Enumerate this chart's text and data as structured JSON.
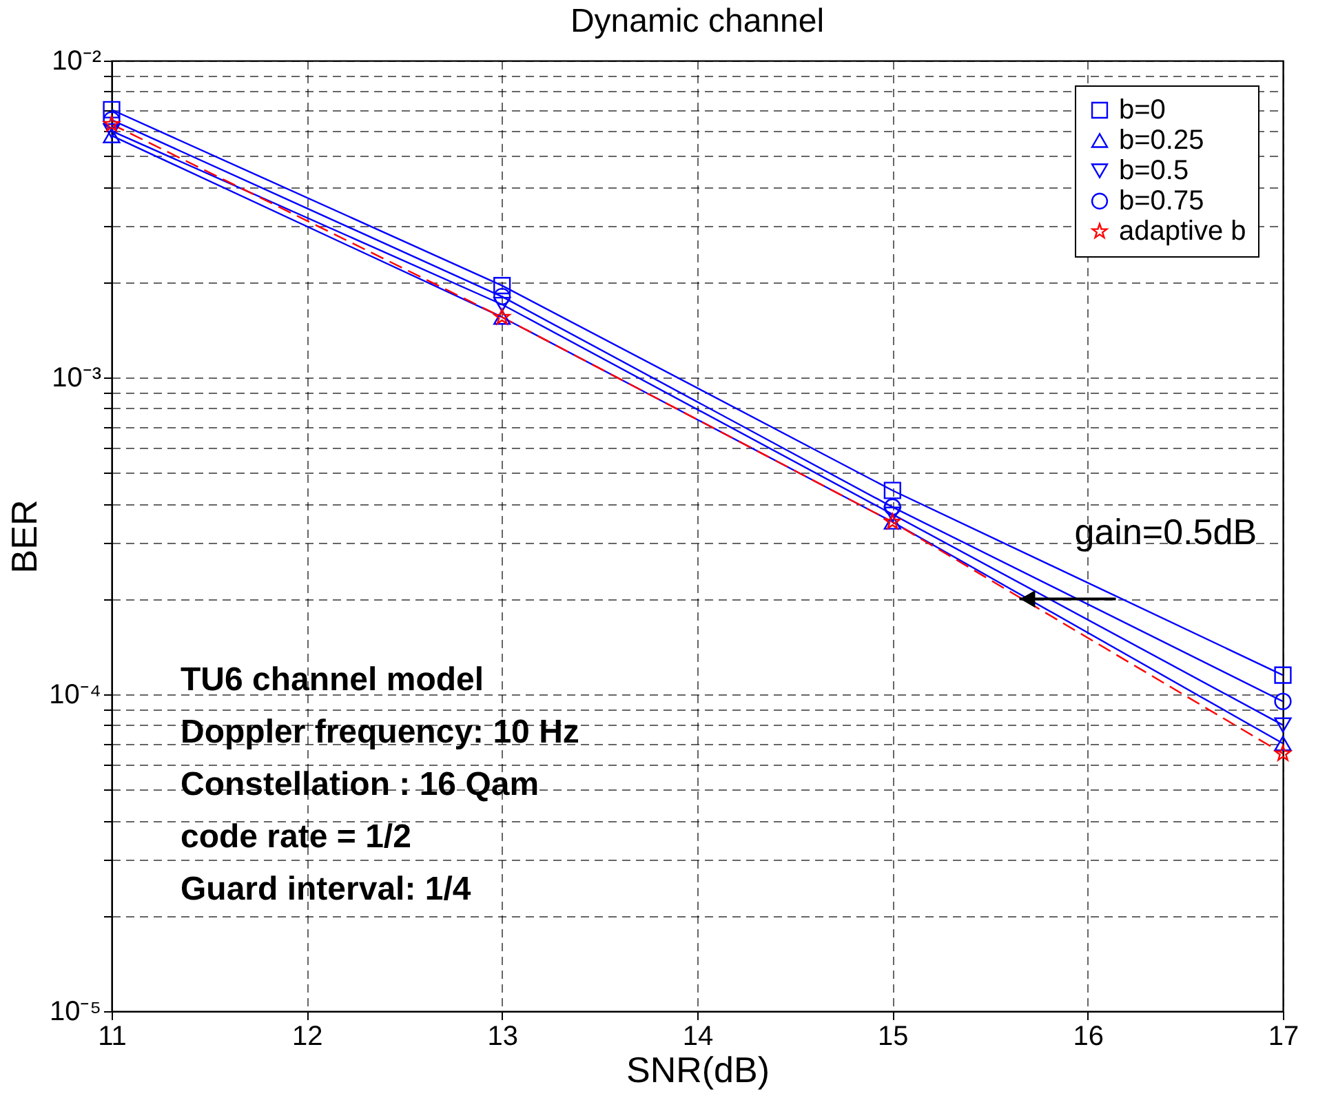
{
  "chart_data": {
    "type": "line",
    "title": "Dynamic channel",
    "xlabel": "SNR(dB)",
    "ylabel": "BER",
    "x": [
      11,
      13,
      15,
      17
    ],
    "series": [
      {
        "name": "b=0",
        "color": "#0000ff",
        "marker": "square",
        "line_style": "solid",
        "values": [
          0.007,
          0.00195,
          0.00044,
          0.000115
        ]
      },
      {
        "name": "b=0.25",
        "color": "#0000ff",
        "marker": "triangle",
        "line_style": "solid",
        "values": [
          0.0058,
          0.00155,
          0.00035,
          7e-05
        ]
      },
      {
        "name": "b=0.5",
        "color": "#0000ff",
        "marker": "triangle-down",
        "line_style": "solid",
        "values": [
          0.006,
          0.0017,
          0.00037,
          8e-05
        ]
      },
      {
        "name": "b=0.75",
        "color": "#0000ff",
        "marker": "circle",
        "line_style": "solid",
        "values": [
          0.0065,
          0.0018,
          0.00039,
          9.5e-05
        ]
      },
      {
        "name": "adaptive b",
        "color": "#ff0000",
        "marker": "star",
        "line_style": "dashed",
        "values": [
          0.0063,
          0.00155,
          0.00035,
          6.5e-05
        ]
      }
    ],
    "log": "y",
    "grid": true,
    "legend": "top right",
    "xlim": [
      11,
      17
    ],
    "xticks": [
      11,
      12,
      13,
      14,
      15,
      16,
      17
    ],
    "ylim": [
      1e-05,
      0.01
    ],
    "yticks": [
      {
        "value": 1e-05,
        "label": "10⁻⁵"
      },
      {
        "value": 2e-05,
        "label": null
      },
      {
        "value": 3e-05,
        "label": null
      },
      {
        "value": 4e-05,
        "label": null
      },
      {
        "value": 5e-05,
        "label": null
      },
      {
        "value": 6e-05,
        "label": null
      },
      {
        "value": 7e-05,
        "label": null
      },
      {
        "value": 8e-05,
        "label": null
      },
      {
        "value": 9e-05,
        "label": null
      },
      {
        "value": 0.0001,
        "label": "10⁻⁴"
      },
      {
        "value": 0.0002,
        "label": null
      },
      {
        "value": 0.0003,
        "label": null
      },
      {
        "value": 0.0004,
        "label": null
      },
      {
        "value": 0.0005,
        "label": null
      },
      {
        "value": 0.0006,
        "label": null
      },
      {
        "value": 0.0007,
        "label": null
      },
      {
        "value": 0.0008,
        "label": null
      },
      {
        "value": 0.0009,
        "label": null
      },
      {
        "value": 0.001,
        "label": "10⁻³"
      },
      {
        "value": 0.002,
        "label": null
      },
      {
        "value": 0.003,
        "label": null
      },
      {
        "value": 0.004,
        "label": null
      },
      {
        "value": 0.005,
        "label": null
      },
      {
        "value": 0.006,
        "label": null
      },
      {
        "value": 0.007,
        "label": null
      },
      {
        "value": 0.008,
        "label": null
      },
      {
        "value": 0.009,
        "label": null
      },
      {
        "value": 0.01,
        "label": "10⁻²"
      }
    ],
    "annotations": [
      {
        "text": "gain=0.5dB",
        "x": 15.65,
        "y": 0.0002
      },
      "TU6 channel model",
      "Doppler frequency: 10 Hz",
      "Constellation  : 16 Qam",
      "code rate = 1/2",
      "Guard interval: 1/4"
    ]
  }
}
